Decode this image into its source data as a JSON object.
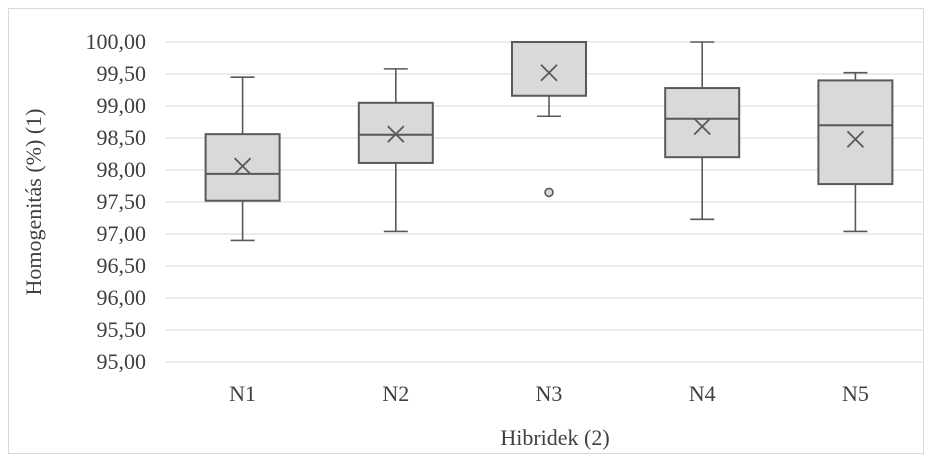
{
  "chart_data": {
    "type": "box",
    "xlabel": "Hibridek (2)",
    "ylabel": "Homogenitás (%) (1)",
    "ylim": [
      95,
      100
    ],
    "y_ticks": [
      "95,00",
      "95,50",
      "96,00",
      "96,50",
      "97,00",
      "97,50",
      "98,00",
      "98,50",
      "99,00",
      "99,50",
      "100,00"
    ],
    "grid": "horizontal",
    "categories": [
      "N1",
      "N2",
      "N3",
      "N4",
      "N5"
    ],
    "boxes": [
      {
        "min": 96.9,
        "q1": 97.52,
        "median": 97.94,
        "q3": 98.56,
        "max": 99.45,
        "mean": 98.06,
        "outliers": []
      },
      {
        "min": 97.04,
        "q1": 98.11,
        "median": 98.55,
        "q3": 99.05,
        "max": 99.58,
        "mean": 98.56,
        "outliers": []
      },
      {
        "min": 98.84,
        "q1": 99.16,
        "median": 100.0,
        "q3": 100.0,
        "max": 100.0,
        "mean": 99.52,
        "outliers": [
          97.65
        ]
      },
      {
        "min": 97.23,
        "q1": 98.2,
        "median": 98.8,
        "q3": 99.28,
        "max": 100.0,
        "mean": 98.68,
        "outliers": []
      },
      {
        "min": 97.04,
        "q1": 97.78,
        "median": 98.7,
        "q3": 99.4,
        "max": 99.52,
        "mean": 98.48,
        "outliers": []
      }
    ]
  }
}
